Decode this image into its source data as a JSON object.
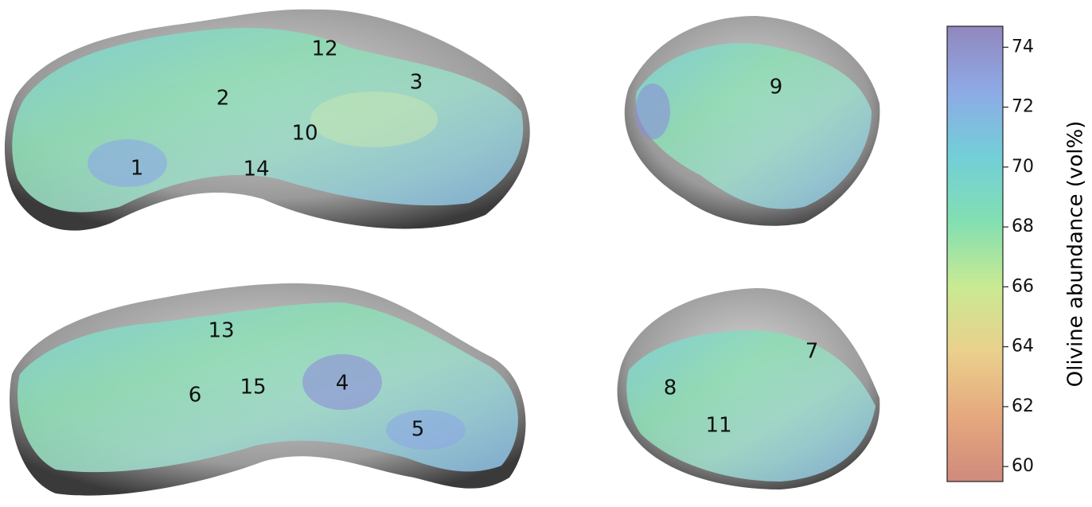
{
  "colorbar": {
    "label": "Olivine abundance (vol%)",
    "lim": [
      59.5,
      74.7
    ],
    "ticks": [
      60,
      62,
      64,
      66,
      68,
      70,
      72,
      74
    ],
    "colors": [
      "#cf8a7c",
      "#e6a87e",
      "#ead08c",
      "#c9ea92",
      "#82dfb2",
      "#72cfd8",
      "#8eaae6",
      "#9187bd"
    ]
  },
  "views": {
    "top_left": [
      "1",
      "2",
      "3",
      "10",
      "12",
      "14"
    ],
    "bottom_left": [
      "13",
      "6",
      "15",
      "4",
      "5"
    ],
    "top_right": [
      "9"
    ],
    "bottom_right": [
      "7",
      "8",
      "11"
    ]
  }
}
